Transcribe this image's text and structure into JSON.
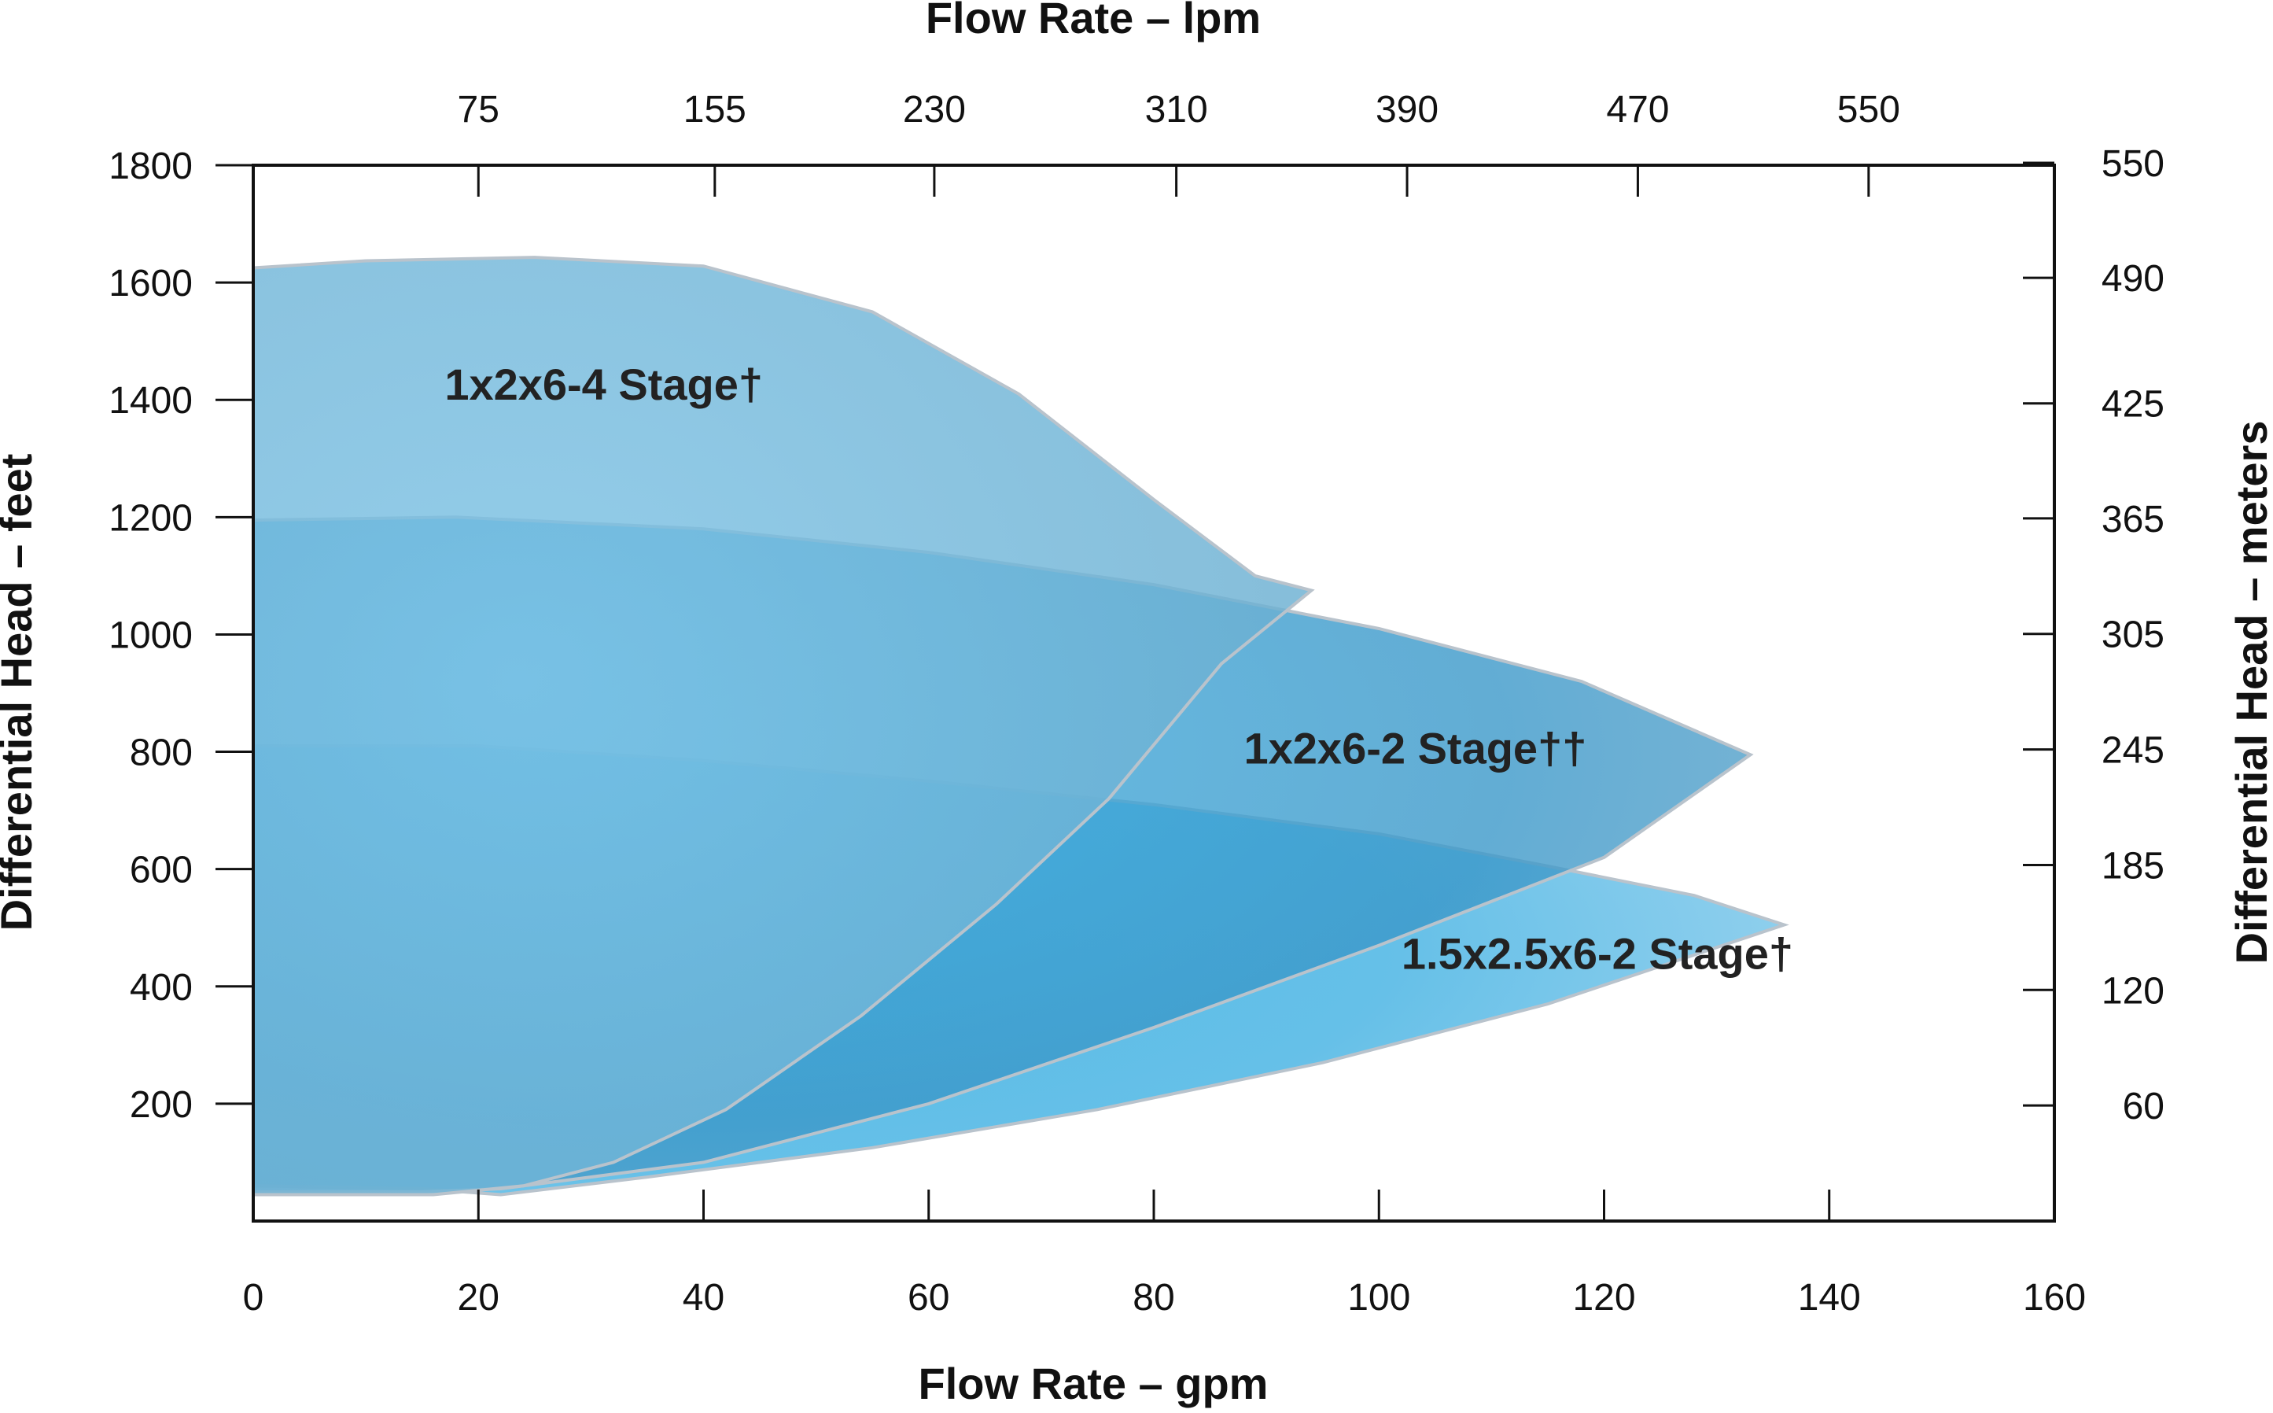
{
  "chart_data": {
    "type": "area",
    "top_axis_title": "Flow Rate – lpm",
    "bottom_axis_title": "Flow Rate – gpm",
    "left_axis_title": "Differential Head – feet",
    "right_axis_title": "Differential Head – meters",
    "xlim": [
      0,
      160
    ],
    "ylim": [
      0,
      1800
    ],
    "x_ticks": [
      {
        "value": 0,
        "label": "0"
      },
      {
        "value": 20,
        "label": "20"
      },
      {
        "value": 40,
        "label": "40"
      },
      {
        "value": 60,
        "label": "60"
      },
      {
        "value": 80,
        "label": "80"
      },
      {
        "value": 100,
        "label": "100"
      },
      {
        "value": 120,
        "label": "120"
      },
      {
        "value": 140,
        "label": "140"
      },
      {
        "value": 160,
        "label": "160"
      }
    ],
    "top_ticks": [
      {
        "value": 20,
        "label": "75"
      },
      {
        "value": 41,
        "label": "155"
      },
      {
        "value": 60.5,
        "label": "230"
      },
      {
        "value": 82,
        "label": "310"
      },
      {
        "value": 102.5,
        "label": "390"
      },
      {
        "value": 123,
        "label": "470"
      },
      {
        "value": 143.5,
        "label": "550"
      }
    ],
    "y_ticks": [
      {
        "value": 200,
        "label": "200"
      },
      {
        "value": 400,
        "label": "400"
      },
      {
        "value": 600,
        "label": "600"
      },
      {
        "value": 800,
        "label": "800"
      },
      {
        "value": 1000,
        "label": "1000"
      },
      {
        "value": 1200,
        "label": "1200"
      },
      {
        "value": 1400,
        "label": "1400"
      },
      {
        "value": 1600,
        "label": "1600"
      },
      {
        "value": 1800,
        "label": "1800"
      }
    ],
    "right_ticks": [
      {
        "value": 197,
        "label": "60"
      },
      {
        "value": 394,
        "label": "120"
      },
      {
        "value": 607,
        "label": "185"
      },
      {
        "value": 804,
        "label": "245"
      },
      {
        "value": 1001,
        "label": "305"
      },
      {
        "value": 1198,
        "label": "365"
      },
      {
        "value": 1394,
        "label": "425"
      },
      {
        "value": 1608,
        "label": "490"
      },
      {
        "value": 1804,
        "label": "550"
      }
    ],
    "series": [
      {
        "name": "1x2x6-4 Stage†",
        "color": "#6bb4d8",
        "label_at": [
          17,
          1400
        ],
        "polygon": [
          [
            0,
            1625
          ],
          [
            10,
            1637
          ],
          [
            25,
            1643
          ],
          [
            40,
            1628
          ],
          [
            55,
            1550
          ],
          [
            68,
            1410
          ],
          [
            80,
            1230
          ],
          [
            89,
            1100
          ],
          [
            94,
            1075
          ],
          [
            86,
            950
          ],
          [
            76,
            720
          ],
          [
            66,
            540
          ],
          [
            54,
            350
          ],
          [
            42,
            190
          ],
          [
            32,
            100
          ],
          [
            24,
            60
          ],
          [
            16,
            45
          ],
          [
            0,
            45
          ]
        ]
      },
      {
        "name": "1x2x6-2 Stage††",
        "color": "#3a9fd3",
        "label_at": [
          88,
          780
        ],
        "polygon": [
          [
            0,
            1195
          ],
          [
            18,
            1200
          ],
          [
            40,
            1180
          ],
          [
            60,
            1140
          ],
          [
            80,
            1085
          ],
          [
            100,
            1010
          ],
          [
            118,
            920
          ],
          [
            133,
            795
          ],
          [
            120,
            620
          ],
          [
            100,
            470
          ],
          [
            80,
            330
          ],
          [
            60,
            200
          ],
          [
            40,
            100
          ],
          [
            22,
            55
          ],
          [
            15,
            50
          ],
          [
            0,
            50
          ]
        ]
      },
      {
        "name": "1.5x2.5x6-2 Stage†",
        "color": "#2aa4dc",
        "label_at": [
          102,
          430
        ],
        "polygon": [
          [
            0,
            810
          ],
          [
            20,
            810
          ],
          [
            40,
            785
          ],
          [
            60,
            750
          ],
          [
            80,
            710
          ],
          [
            100,
            660
          ],
          [
            115,
            605
          ],
          [
            128,
            555
          ],
          [
            136,
            505
          ],
          [
            115,
            370
          ],
          [
            95,
            270
          ],
          [
            75,
            190
          ],
          [
            55,
            125
          ],
          [
            35,
            75
          ],
          [
            22,
            45
          ],
          [
            15,
            55
          ],
          [
            0,
            60
          ]
        ]
      }
    ]
  }
}
